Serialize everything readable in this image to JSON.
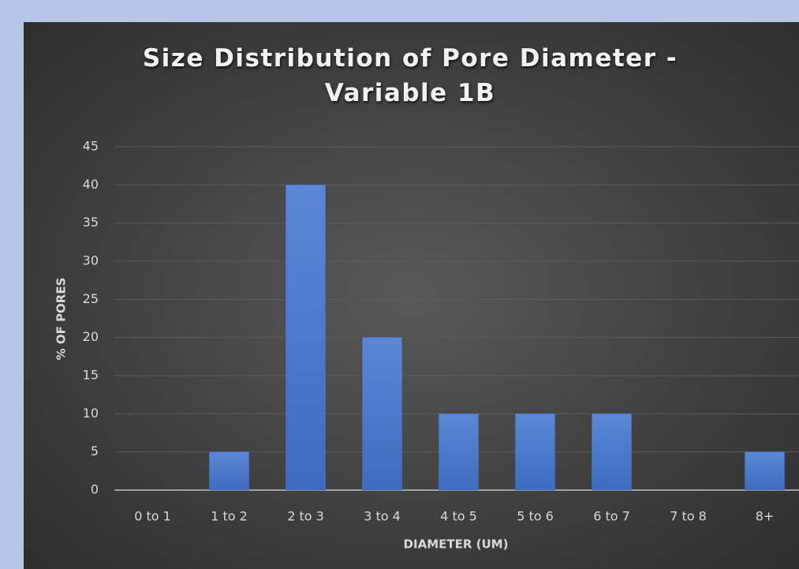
{
  "chart_data": {
    "type": "bar",
    "title": "Size Distribution of Pore Diameter - Variable 1B",
    "x_label": "DIAMETER (UM)",
    "y_label": "% OF PORES",
    "categories": [
      "0 to 1",
      "1 to 2",
      "2 to 3",
      "3 to 4",
      "4 to 5",
      "5 to 6",
      "6 to 7",
      "7 to 8",
      "8+"
    ],
    "values": [
      0,
      5,
      40,
      20,
      10,
      10,
      10,
      0,
      5
    ],
    "color": "#4a78cf",
    "ylim": [
      0,
      45
    ],
    "yticks": [
      0,
      5,
      10,
      15,
      20,
      25,
      30,
      35,
      40,
      45
    ],
    "grid": true
  }
}
